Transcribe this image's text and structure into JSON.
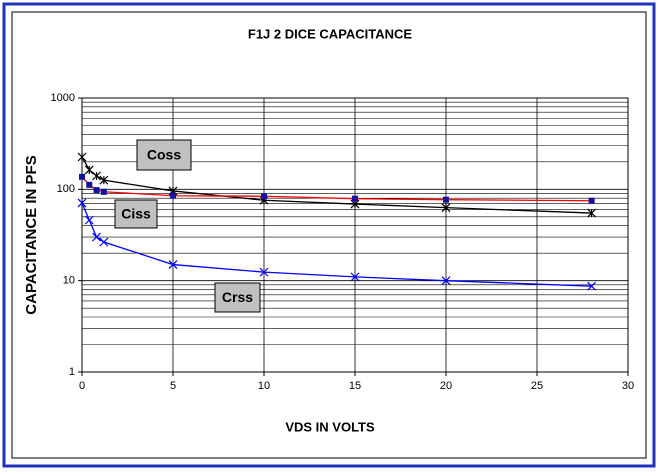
{
  "chart_data": {
    "type": "line",
    "title": "F1J 2 DICE CAPACITANCE",
    "xlabel": "VDS IN VOLTS",
    "ylabel": "CAPACITANCE IN PFS",
    "x": [
      0,
      0.4,
      0.8,
      1.2,
      5,
      10,
      15,
      20,
      28
    ],
    "series": [
      {
        "name": "Coss",
        "color": "#000000",
        "marker": "asterisk",
        "marker_color": "#000000",
        "values": [
          226,
          163,
          140,
          126,
          96,
          76,
          69,
          63,
          55
        ]
      },
      {
        "name": "Ciss",
        "color": "#ff0000",
        "marker": "square",
        "marker_color": "#1010a0",
        "values": [
          137,
          112,
          98,
          94,
          85,
          84,
          79,
          77,
          75
        ]
      },
      {
        "name": "Crss",
        "color": "#0000ff",
        "marker": "x",
        "marker_color": "#0000ff",
        "values": [
          71,
          46,
          30,
          26.5,
          15,
          12.4,
          11,
          10,
          8.7
        ]
      }
    ],
    "xlim": [
      0,
      30
    ],
    "xticks": [
      0,
      5,
      10,
      15,
      20,
      25,
      30
    ],
    "ylim": [
      1,
      1000
    ],
    "yticks": [
      1,
      10,
      100,
      1000
    ],
    "log_y": true,
    "grid": true,
    "minor_grid": true
  }
}
